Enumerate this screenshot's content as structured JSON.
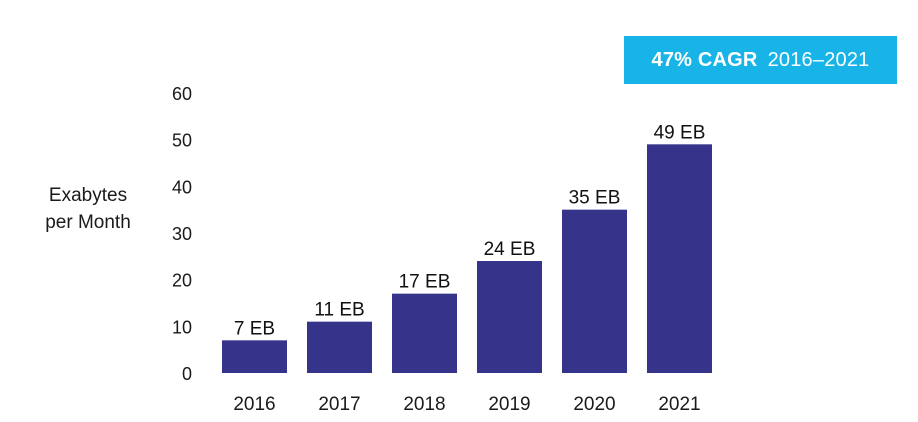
{
  "chart_data": {
    "type": "bar",
    "categories": [
      "2016",
      "2017",
      "2018",
      "2019",
      "2020",
      "2021"
    ],
    "values": [
      7,
      11,
      17,
      24,
      35,
      49
    ],
    "data_labels": [
      "7 EB",
      "11 EB",
      "17 EB",
      "24 EB",
      "35 EB",
      "49 EB"
    ],
    "ylabel_lines": [
      "Exabytes",
      "per Month"
    ],
    "xlabel": "",
    "ylim": [
      0,
      60
    ],
    "yticks": [
      0,
      10,
      20,
      30,
      40,
      50,
      60
    ],
    "grid": false,
    "bar_color": "#35338a",
    "annotation": {
      "bold": "47% CAGR",
      "text": "2016–2021",
      "color": "#18b4e8"
    }
  }
}
